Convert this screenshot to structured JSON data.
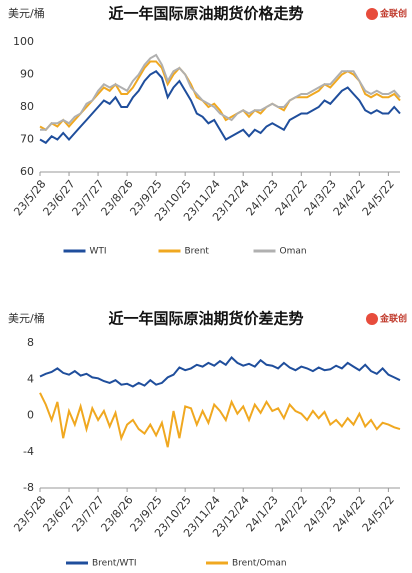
{
  "chart_data": [
    {
      "type": "line",
      "title": "近一年国际原油期货价格走势",
      "y_label": "美元/桶",
      "logo": "金联创",
      "categories": [
        "23/5/28",
        null,
        null,
        null,
        null,
        "23/6/27",
        null,
        null,
        null,
        null,
        "23/7/27",
        null,
        null,
        null,
        null,
        "23/8/26",
        null,
        null,
        null,
        null,
        "23/9/25",
        null,
        null,
        null,
        null,
        "23/10/25",
        null,
        null,
        null,
        null,
        "23/11/24",
        null,
        null,
        null,
        null,
        "23/12/24",
        null,
        null,
        null,
        null,
        "24/1/23",
        null,
        null,
        null,
        null,
        "24/2/22",
        null,
        null,
        null,
        null,
        "24/3/23",
        null,
        null,
        null,
        null,
        "24/4/22",
        null,
        null,
        null,
        null,
        "24/5/22",
        null,
        null
      ],
      "ylim": [
        60,
        100
      ],
      "yticks": [
        60,
        70,
        80,
        90,
        100
      ],
      "grid": false,
      "series": [
        {
          "name": "WTI",
          "color": "#1f4e9c",
          "values": [
            70,
            69,
            71,
            70,
            72,
            70,
            72,
            74,
            76,
            78,
            80,
            82,
            81,
            83,
            80,
            80,
            83,
            85,
            88,
            90,
            91,
            89,
            83,
            86,
            88,
            85,
            82,
            78,
            77,
            75,
            76,
            73,
            70,
            71,
            72,
            73,
            71,
            73,
            72,
            74,
            75,
            74,
            73,
            76,
            77,
            78,
            78,
            79,
            80,
            82,
            81,
            83,
            85,
            86,
            84,
            82,
            79,
            78,
            79,
            78,
            78,
            80,
            78
          ]
        },
        {
          "name": "Brent",
          "color": "#f0a820",
          "values": [
            74,
            73,
            75,
            74,
            76,
            74,
            76,
            78,
            80,
            82,
            84,
            86,
            85,
            87,
            84,
            84,
            86,
            89,
            92,
            94,
            94,
            92,
            87,
            90,
            92,
            90,
            87,
            83,
            82,
            80,
            81,
            79,
            76,
            77,
            78,
            79,
            77,
            79,
            78,
            80,
            81,
            80,
            79,
            82,
            83,
            83,
            83,
            84,
            85,
            87,
            86,
            88,
            90,
            91,
            90,
            88,
            84,
            83,
            84,
            83,
            83,
            84,
            82
          ]
        },
        {
          "name": "Oman",
          "color": "#b0b0b0",
          "values": [
            73,
            73,
            75,
            75,
            76,
            75,
            77,
            78,
            81,
            82,
            85,
            87,
            86,
            87,
            86,
            85,
            88,
            90,
            93,
            95,
            96,
            93,
            88,
            91,
            92,
            90,
            86,
            84,
            82,
            81,
            80,
            78,
            77,
            76,
            78,
            79,
            78,
            79,
            79,
            80,
            81,
            80,
            80,
            82,
            83,
            84,
            84,
            85,
            86,
            87,
            87,
            89,
            91,
            91,
            91,
            88,
            85,
            84,
            85,
            84,
            84,
            85,
            83
          ]
        }
      ]
    },
    {
      "type": "line",
      "title": "近一年国际原油期货价差走势",
      "y_label": "美元/桶",
      "logo": "金联创",
      "categories": [
        "23/5/28",
        null,
        null,
        null,
        null,
        "23/6/27",
        null,
        null,
        null,
        null,
        "23/7/27",
        null,
        null,
        null,
        null,
        "23/8/26",
        null,
        null,
        null,
        null,
        "23/9/25",
        null,
        null,
        null,
        null,
        "23/10/25",
        null,
        null,
        null,
        null,
        "23/11/24",
        null,
        null,
        null,
        null,
        "23/12/24",
        null,
        null,
        null,
        null,
        "24/1/23",
        null,
        null,
        null,
        null,
        "24/2/22",
        null,
        null,
        null,
        null,
        "24/3/23",
        null,
        null,
        null,
        null,
        "24/4/22",
        null,
        null,
        null,
        null,
        "24/5/22",
        null,
        null
      ],
      "ylim": [
        -8,
        8
      ],
      "yticks": [
        -8,
        -4,
        0,
        4,
        8
      ],
      "grid": false,
      "series": [
        {
          "name": "Brent/WTI",
          "color": "#1f4e9c",
          "values": [
            4.3,
            4.6,
            4.8,
            5.2,
            4.7,
            4.5,
            4.9,
            4.4,
            4.6,
            4.2,
            4.1,
            3.8,
            3.6,
            3.9,
            3.4,
            3.5,
            3.2,
            3.6,
            3.3,
            3.9,
            3.4,
            3.6,
            4.2,
            4.5,
            5.3,
            5.0,
            5.2,
            5.6,
            5.4,
            5.8,
            5.5,
            6.0,
            5.6,
            6.4,
            5.8,
            5.5,
            5.7,
            5.4,
            6.1,
            5.6,
            5.5,
            5.2,
            5.8,
            5.3,
            5.0,
            5.4,
            5.2,
            4.9,
            5.3,
            5.0,
            5.1,
            5.5,
            5.2,
            5.8,
            5.4,
            5.0,
            5.6,
            4.9,
            4.6,
            5.2,
            4.5,
            4.2,
            3.9
          ]
        },
        {
          "name": "Brent/Oman",
          "color": "#f0a820",
          "values": [
            2.5,
            1.2,
            -0.5,
            1.5,
            -2.5,
            0.5,
            -1.0,
            1.0,
            -1.5,
            0.8,
            -0.5,
            0.5,
            -1.2,
            0.3,
            -2.5,
            -1.0,
            -0.5,
            -1.5,
            -2.0,
            -1.0,
            -2.2,
            -0.8,
            -3.5,
            0.5,
            -2.5,
            1.0,
            0.8,
            -1.0,
            0.5,
            -0.8,
            1.2,
            0.5,
            -0.5,
            1.5,
            0.2,
            1.0,
            -0.5,
            1.2,
            0.3,
            1.5,
            0.5,
            0.8,
            -0.3,
            1.2,
            0.5,
            0.2,
            -0.5,
            0.5,
            -0.3,
            0.4,
            -1.0,
            -0.5,
            -1.2,
            -0.3,
            -1.0,
            0.2,
            -1.2,
            -0.5,
            -1.5,
            -0.8,
            -1.0,
            -1.3,
            -1.5
          ]
        }
      ]
    }
  ]
}
